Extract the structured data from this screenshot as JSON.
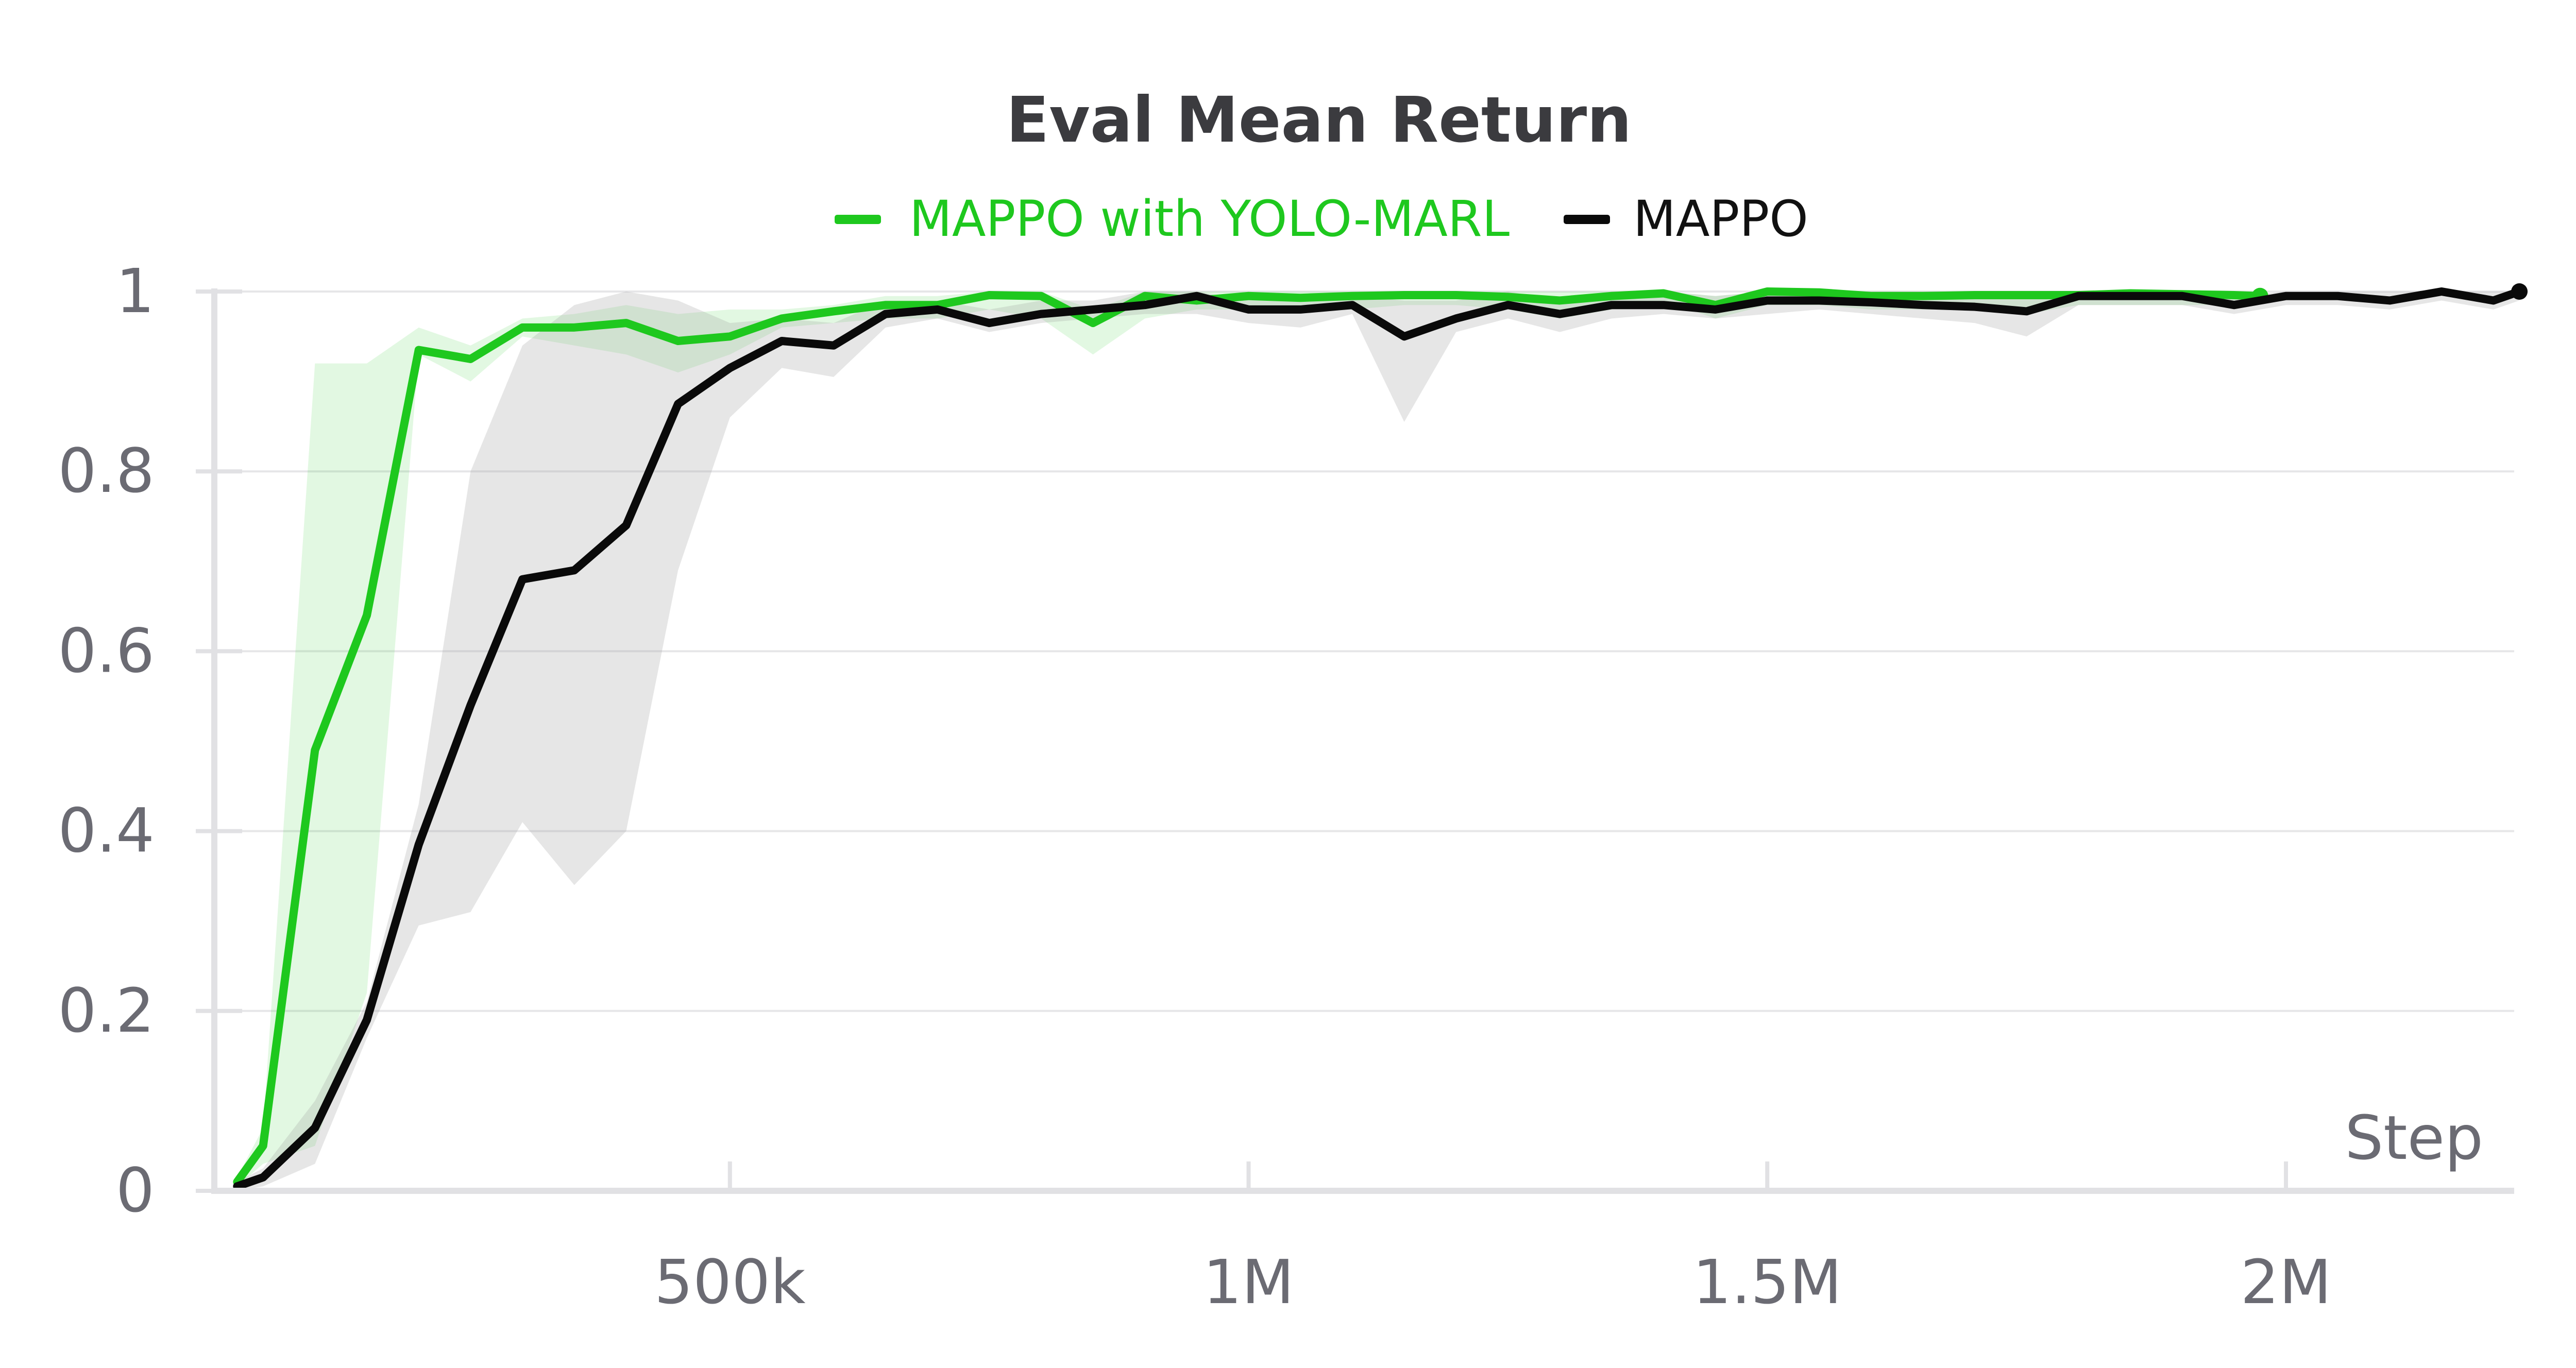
{
  "chart_data": {
    "type": "line",
    "title": "Eval Mean Return",
    "xlabel": "Step",
    "ylabel": "",
    "xlim": [
      0,
      2220000
    ],
    "ylim": [
      0,
      1
    ],
    "grid": true,
    "legend_position": "top-center",
    "x_ticks": [
      {
        "value": 500000,
        "label": "500k"
      },
      {
        "value": 1000000,
        "label": "1M"
      },
      {
        "value": 1500000,
        "label": "1.5M"
      },
      {
        "value": 2000000,
        "label": "2M"
      }
    ],
    "y_ticks": [
      {
        "value": 0,
        "label": "0"
      },
      {
        "value": 0.2,
        "label": "0.2"
      },
      {
        "value": 0.4,
        "label": "0.4"
      },
      {
        "value": 0.6,
        "label": "0.6"
      },
      {
        "value": 0.8,
        "label": "0.8"
      },
      {
        "value": 1,
        "label": "1"
      }
    ],
    "series": [
      {
        "name": "MAPPO with YOLO-MARL",
        "color": "#1ec81e",
        "band_color": "#1ec81e",
        "x": [
          25000,
          50000,
          100000,
          150000,
          200000,
          250000,
          300000,
          350000,
          400000,
          450000,
          500000,
          550000,
          600000,
          650000,
          700000,
          750000,
          800000,
          850000,
          900000,
          950000,
          1000000,
          1050000,
          1100000,
          1150000,
          1200000,
          1250000,
          1300000,
          1350000,
          1400000,
          1450000,
          1500000,
          1550000,
          1600000,
          1650000,
          1700000,
          1750000,
          1800000,
          1850000,
          1900000,
          1950000,
          1975000
        ],
        "values": [
          0.01,
          0.05,
          0.49,
          0.64,
          0.935,
          0.925,
          0.96,
          0.96,
          0.965,
          0.945,
          0.95,
          0.97,
          0.978,
          0.985,
          0.985,
          0.996,
          0.995,
          0.965,
          0.995,
          0.99,
          0.995,
          0.993,
          0.995,
          0.996,
          0.996,
          0.994,
          0.99,
          0.995,
          0.998,
          0.985,
          1.0,
          0.999,
          0.995,
          0.995,
          0.996,
          0.996,
          0.996,
          0.998,
          0.997,
          0.996,
          0.995
        ],
        "lower": [
          0.005,
          0.03,
          0.05,
          0.22,
          0.93,
          0.9,
          0.95,
          0.94,
          0.93,
          0.91,
          0.93,
          0.96,
          0.965,
          0.97,
          0.97,
          0.98,
          0.97,
          0.93,
          0.97,
          0.98,
          0.98,
          0.98,
          0.98,
          0.985,
          0.985,
          0.98,
          0.97,
          0.98,
          0.99,
          0.97,
          0.985,
          0.985,
          0.98,
          0.98,
          0.98,
          0.975,
          0.985,
          0.985,
          0.985,
          0.985,
          0.99
        ],
        "upper": [
          0.015,
          0.07,
          0.92,
          0.92,
          0.96,
          0.94,
          0.97,
          0.975,
          0.985,
          0.975,
          0.98,
          0.98,
          0.985,
          0.995,
          0.995,
          1.0,
          1.0,
          0.98,
          1.0,
          1.0,
          1.0,
          1.0,
          1.0,
          1.0,
          1.0,
          1.0,
          1.0,
          1.0,
          1.0,
          0.995,
          1.0,
          1.0,
          1.0,
          1.0,
          1.0,
          1.0,
          1.0,
          1.0,
          1.0,
          1.0,
          1.0
        ]
      },
      {
        "name": "MAPPO",
        "color": "#0a0a0a",
        "band_color": "#9a9a9a",
        "x": [
          25000,
          50000,
          100000,
          150000,
          200000,
          250000,
          300000,
          350000,
          400000,
          450000,
          500000,
          550000,
          600000,
          650000,
          700000,
          750000,
          800000,
          850000,
          900000,
          950000,
          1000000,
          1050000,
          1100000,
          1150000,
          1200000,
          1250000,
          1300000,
          1350000,
          1400000,
          1450000,
          1500000,
          1550000,
          1600000,
          1650000,
          1700000,
          1750000,
          1800000,
          1850000,
          1900000,
          1950000,
          2000000,
          2050000,
          2100000,
          2150000,
          2200000,
          2225000
        ],
        "values": [
          0.005,
          0.015,
          0.07,
          0.19,
          0.385,
          0.54,
          0.68,
          0.69,
          0.74,
          0.875,
          0.915,
          0.945,
          0.94,
          0.975,
          0.98,
          0.965,
          0.975,
          0.98,
          0.985,
          0.995,
          0.98,
          0.98,
          0.985,
          0.95,
          0.97,
          0.985,
          0.975,
          0.985,
          0.985,
          0.98,
          0.99,
          0.99,
          0.988,
          0.985,
          0.983,
          0.978,
          0.995,
          0.995,
          0.995,
          0.985,
          0.995,
          0.995,
          0.99,
          1.0,
          0.99,
          1.0
        ],
        "lower": [
          0.0,
          0.005,
          0.03,
          0.17,
          0.295,
          0.31,
          0.41,
          0.34,
          0.4,
          0.69,
          0.86,
          0.915,
          0.905,
          0.96,
          0.97,
          0.955,
          0.965,
          0.97,
          0.975,
          0.975,
          0.965,
          0.96,
          0.975,
          0.855,
          0.955,
          0.97,
          0.955,
          0.97,
          0.975,
          0.97,
          0.975,
          0.98,
          0.975,
          0.97,
          0.965,
          0.95,
          0.985,
          0.985,
          0.985,
          0.975,
          0.985,
          0.985,
          0.98,
          0.99,
          0.98,
          0.99
        ],
        "upper": [
          0.01,
          0.025,
          0.1,
          0.21,
          0.43,
          0.8,
          0.94,
          0.985,
          1.0,
          0.99,
          0.965,
          0.97,
          0.965,
          0.99,
          0.99,
          0.98,
          0.99,
          0.99,
          1.0,
          1.0,
          0.99,
          0.995,
          0.995,
          0.99,
          0.99,
          1.0,
          0.99,
          1.0,
          1.0,
          0.995,
          1.0,
          1.0,
          1.0,
          1.0,
          1.0,
          0.995,
          1.0,
          1.0,
          1.0,
          0.995,
          1.0,
          1.0,
          1.0,
          1.0,
          1.0,
          1.0
        ]
      }
    ]
  }
}
